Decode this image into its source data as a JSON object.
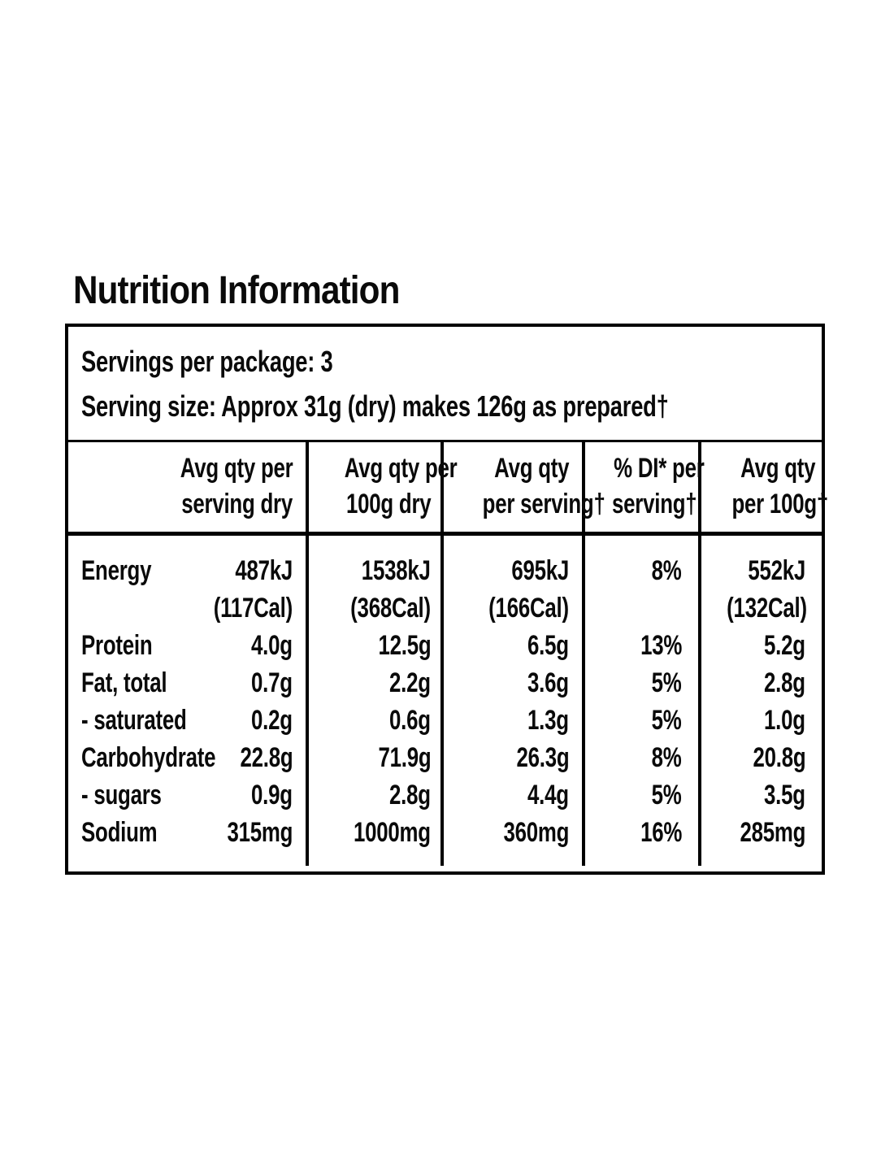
{
  "title": "Nutrition Information",
  "serving_info": {
    "servings_per_package": "Servings per package: 3",
    "serving_size": "Serving size: Approx 31g (dry) makes 126g as prepared†"
  },
  "columns": [
    {
      "line1": "Avg qty per",
      "line2": "serving dry"
    },
    {
      "line1": "Avg qty per",
      "line2": "100g dry"
    },
    {
      "line1": "Avg qty",
      "line2": "per serving†"
    },
    {
      "line1": "% DI* per",
      "line2": "serving†"
    },
    {
      "line1": "Avg qty",
      "line2": "per 100g†"
    }
  ],
  "rows": [
    {
      "label": "Energy",
      "serving_dry": "487kJ",
      "serving_dry_cal": "(117Cal)",
      "per_100g_dry": "1538kJ",
      "per_100g_dry_cal": "(368Cal)",
      "per_serving": "695kJ",
      "per_serving_cal": "(166Cal)",
      "di_per_serving": "8%",
      "per_100g": "552kJ",
      "per_100g_cal": "(132Cal)"
    },
    {
      "label": "Protein",
      "serving_dry": "4.0g",
      "per_100g_dry": "12.5g",
      "per_serving": "6.5g",
      "di_per_serving": "13%",
      "per_100g": "5.2g"
    },
    {
      "label": "Fat, total",
      "serving_dry": "0.7g",
      "per_100g_dry": "2.2g",
      "per_serving": "3.6g",
      "di_per_serving": "5%",
      "per_100g": "2.8g"
    },
    {
      "label": "- saturated",
      "serving_dry": "0.2g",
      "per_100g_dry": "0.6g",
      "per_serving": "1.3g",
      "di_per_serving": "5%",
      "per_100g": "1.0g"
    },
    {
      "label": "Carbohydrate",
      "serving_dry": "22.8g",
      "per_100g_dry": "71.9g",
      "per_serving": "26.3g",
      "di_per_serving": "8%",
      "per_100g": "20.8g"
    },
    {
      "label": "- sugars",
      "serving_dry": "0.9g",
      "per_100g_dry": "2.8g",
      "per_serving": "4.4g",
      "di_per_serving": "5%",
      "per_100g": "3.5g"
    },
    {
      "label": "Sodium",
      "serving_dry": "315mg",
      "per_100g_dry": "1000mg",
      "per_serving": "360mg",
      "di_per_serving": "16%",
      "per_100g": "285mg"
    }
  ],
  "colors": {
    "text": "#0a0a0a",
    "background": "#ffffff",
    "border": "#000000"
  }
}
